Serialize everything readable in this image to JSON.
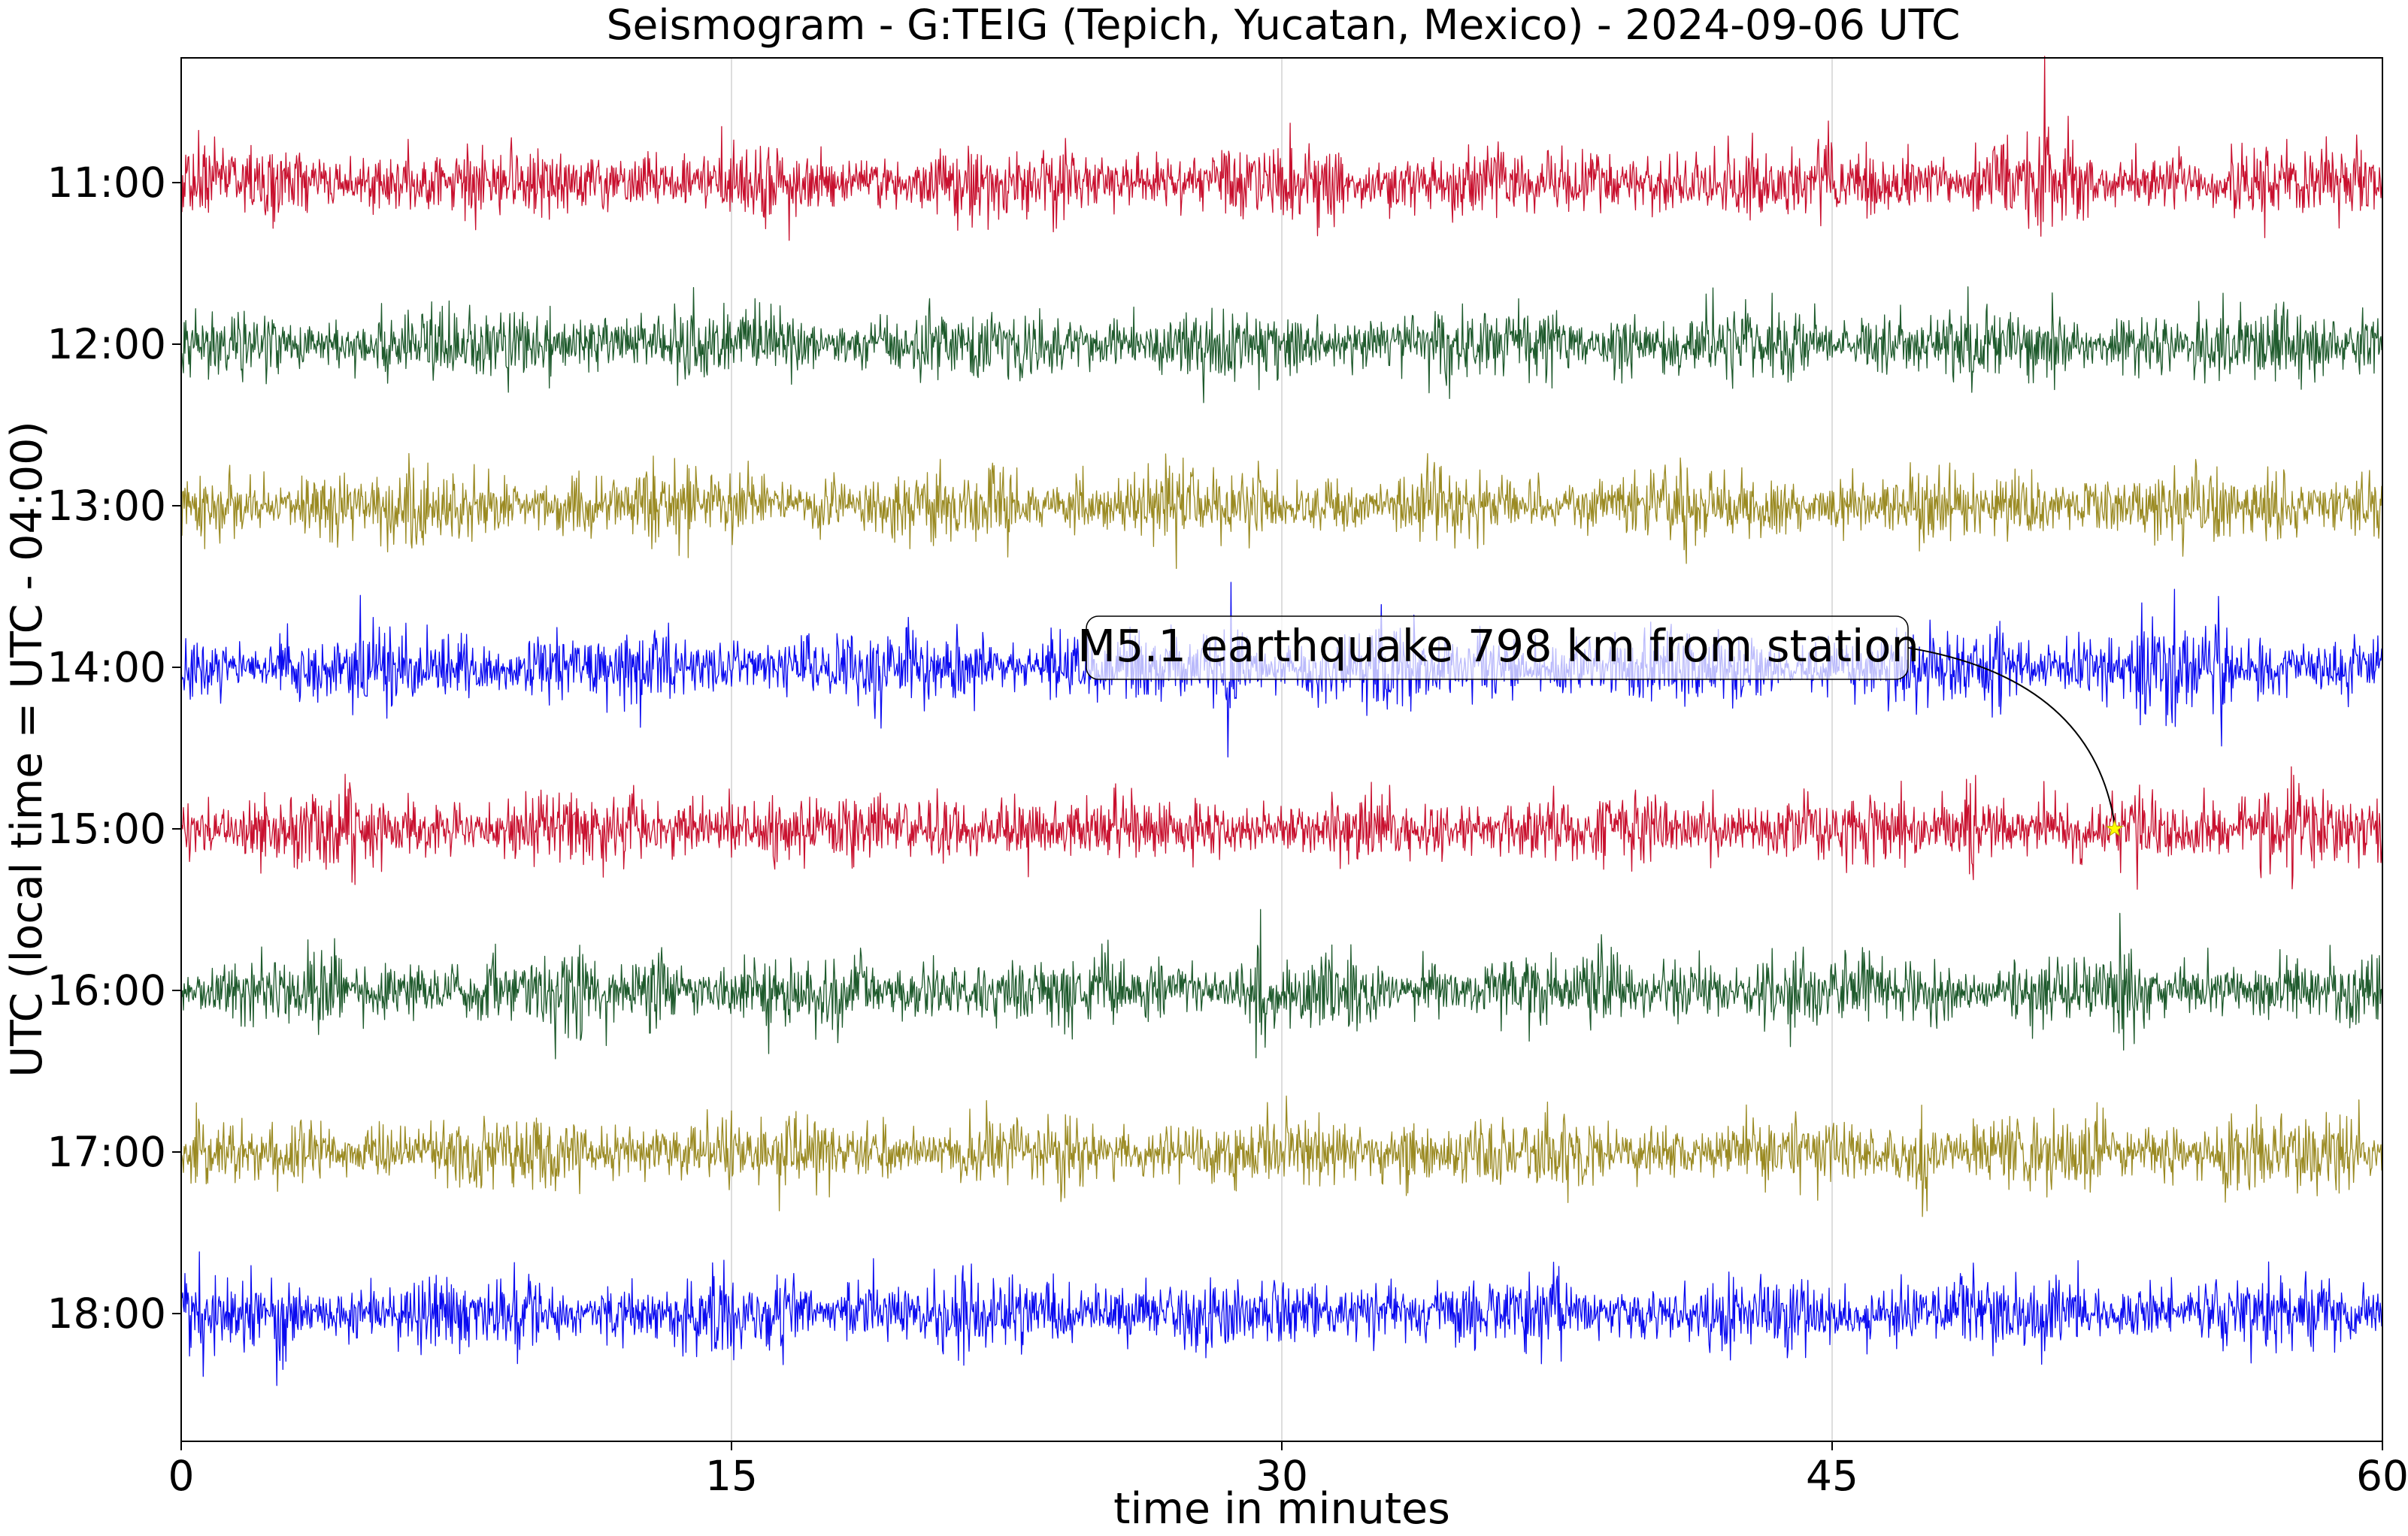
{
  "chart_data": {
    "type": "line",
    "title": "Seismogram - G:TEIG (Tepich, Yucatan, Mexico) - 2024-09-06 UTC",
    "xlabel": "time in minutes",
    "ylabel": "UTC (local time = UTC - 04:00)",
    "xlim": [
      0,
      60
    ],
    "x_ticks": [
      0,
      15,
      30,
      45,
      60
    ],
    "x_tick_labels": [
      "0",
      "15",
      "30",
      "45",
      "60"
    ],
    "grid": "vertical lines at x ticks",
    "rows": [
      {
        "label": "11:00",
        "color": "#c8102e",
        "bursts": [
          {
            "x": 6.2,
            "a": 1.4
          },
          {
            "x": 31.5,
            "a": 2.0
          },
          {
            "x": 43.0,
            "a": 1.6
          },
          {
            "x": 46.0,
            "a": 1.8
          },
          {
            "x": 50.8,
            "a": 3.2
          },
          {
            "x": 59.6,
            "a": 1.5
          }
        ]
      },
      {
        "label": "12:00",
        "color": "#1e5a2c",
        "bursts": [
          {
            "x": 5.5,
            "a": 1.6
          },
          {
            "x": 10.0,
            "a": 1.5
          },
          {
            "x": 21.5,
            "a": 1.4
          },
          {
            "x": 48.0,
            "a": 1.3
          },
          {
            "x": 59.5,
            "a": 1.9
          }
        ]
      },
      {
        "label": "13:00",
        "color": "#9a8a22",
        "bursts": [
          {
            "x": 4.2,
            "a": 1.5
          },
          {
            "x": 27.5,
            "a": 1.4
          },
          {
            "x": 39.5,
            "a": 1.4
          },
          {
            "x": 44.5,
            "a": 1.3
          }
        ]
      },
      {
        "label": "14:00",
        "color": "#0a0af0",
        "bursts": [
          {
            "x": 28.6,
            "a": 3.0
          },
          {
            "x": 49.5,
            "a": 3.6
          },
          {
            "x": 53.4,
            "a": 1.8
          },
          {
            "x": 54.2,
            "a": 2.2
          },
          {
            "x": 55.6,
            "a": 2.4
          }
        ]
      },
      {
        "label": "15:00",
        "color": "#c8102e",
        "bursts": [
          {
            "x": 4.6,
            "a": 1.8
          },
          {
            "x": 15.0,
            "a": 2.4
          },
          {
            "x": 48.8,
            "a": 2.6
          },
          {
            "x": 56.8,
            "a": 3.4
          },
          {
            "x": 57.6,
            "a": 2.4
          }
        ]
      },
      {
        "label": "16:00",
        "color": "#1e5a2c",
        "bursts": [
          {
            "x": 13.0,
            "a": 2.2
          },
          {
            "x": 26.5,
            "a": 2.0
          },
          {
            "x": 29.3,
            "a": 2.4
          },
          {
            "x": 53.0,
            "a": 2.0
          }
        ]
      },
      {
        "label": "17:00",
        "color": "#9a8a22",
        "bursts": [
          {
            "x": 22.0,
            "a": 2.6
          },
          {
            "x": 33.5,
            "a": 1.7
          },
          {
            "x": 47.5,
            "a": 2.6
          },
          {
            "x": 55.8,
            "a": 1.8
          }
        ]
      },
      {
        "label": "18:00",
        "color": "#0a0af0",
        "bursts": [
          {
            "x": 2.7,
            "a": 2.2
          },
          {
            "x": 33.5,
            "a": 1.4
          },
          {
            "x": 36.5,
            "a": 1.5
          },
          {
            "x": 37.5,
            "a": 2.3
          },
          {
            "x": 59.5,
            "a": 1.5
          }
        ]
      }
    ],
    "annotation": {
      "text": "M5.1 earthquake 798 km from station",
      "row": "15:00",
      "x": 52.7,
      "marker": "star",
      "marker_color": "#ffff00"
    }
  }
}
